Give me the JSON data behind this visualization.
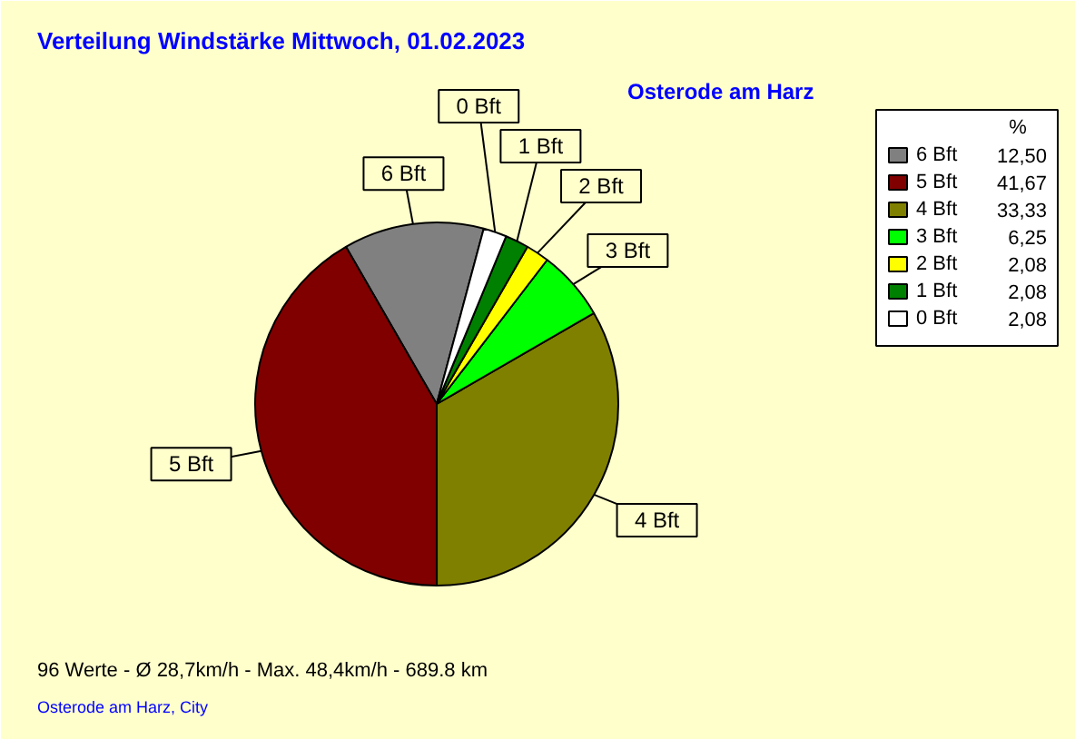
{
  "chart_data": {
    "type": "pie",
    "title": "Verteilung Windstärke  Mittwoch, 01.02.2023",
    "subtitle": "Osterode am Harz",
    "legend_title": "%",
    "legend": "top right",
    "categories": [
      "6 Bft",
      "5 Bft",
      "4 Bft",
      "3 Bft",
      "2 Bft",
      "1 Bft",
      "0 Bft"
    ],
    "values": [
      12.5,
      41.67,
      33.33,
      6.25,
      2.08,
      2.08,
      2.08
    ],
    "value_labels": [
      "12,50",
      "41,67",
      "33,33",
      "6,25",
      "2,08",
      "2,08",
      "2,08"
    ],
    "colors": [
      "#808080",
      "#800000",
      "#808000",
      "#00ff00",
      "#ffff00",
      "#008000",
      "#ffffff"
    ],
    "annotations": [
      "96 Werte   -   Ø 28,7km/h  -  Max. 48,4km/h   -   689.8 km",
      "Osterode am Harz, City"
    ]
  }
}
